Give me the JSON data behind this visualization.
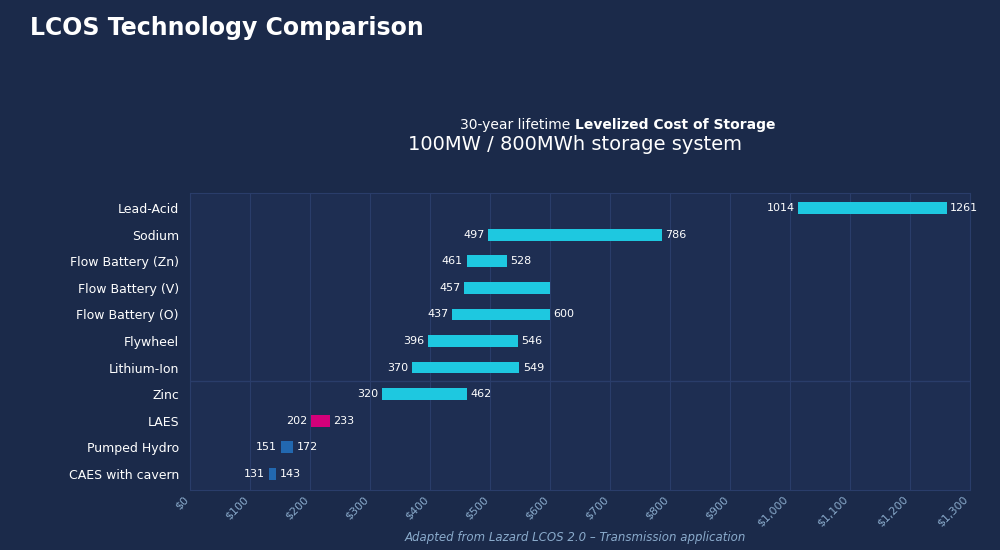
{
  "title_main": "LCOS Technology Comparison",
  "subtitle1_normal": "30-year lifetime ",
  "subtitle1_bold": "Levelized Cost of Storage",
  "subtitle2": "100MW / 800MWh storage system",
  "footnote": "Adapted from Lazard LCOS 2.0 – Transmission application",
  "background_color": "#1b2a4a",
  "chart_bg_color": "#1e2e52",
  "grid_color": "#2a3d6a",
  "bar_color_cyan": "#1ec8e0",
  "bar_color_pink": "#d4007a",
  "bar_color_blue": "#2268b0",
  "text_color": "#ffffff",
  "tick_color": "#8aabcc",
  "categories": [
    "Lead-Acid",
    "Sodium",
    "Flow Battery (Zn)",
    "Flow Battery (V)",
    "Flow Battery (O)",
    "Flywheel",
    "Lithium-Ion",
    "Zinc",
    "LAES",
    "Pumped Hydro",
    "CAES with cavern"
  ],
  "low_values": [
    1014,
    497,
    461,
    457,
    437,
    396,
    370,
    320,
    202,
    151,
    131
  ],
  "high_values": [
    1261,
    786,
    528,
    600,
    600,
    546,
    549,
    462,
    233,
    172,
    143
  ],
  "show_high_label": [
    true,
    true,
    true,
    false,
    true,
    true,
    true,
    true,
    true,
    true,
    true
  ],
  "bar_colors": [
    "#1ec8e0",
    "#1ec8e0",
    "#1ec8e0",
    "#1ec8e0",
    "#1ec8e0",
    "#1ec8e0",
    "#1ec8e0",
    "#1ec8e0",
    "#d4007a",
    "#2268b0",
    "#2268b0"
  ],
  "xlim": [
    0,
    1300
  ],
  "xticks": [
    0,
    100,
    200,
    300,
    400,
    500,
    600,
    700,
    800,
    900,
    1000,
    1100,
    1200,
    1300
  ],
  "xtick_labels": [
    "$0",
    "$100",
    "$200",
    "$300",
    "$400",
    "$500",
    "$600",
    "$700",
    "$800",
    "$900",
    "$1,000",
    "$1,100",
    "$1,200",
    "$1,300"
  ]
}
